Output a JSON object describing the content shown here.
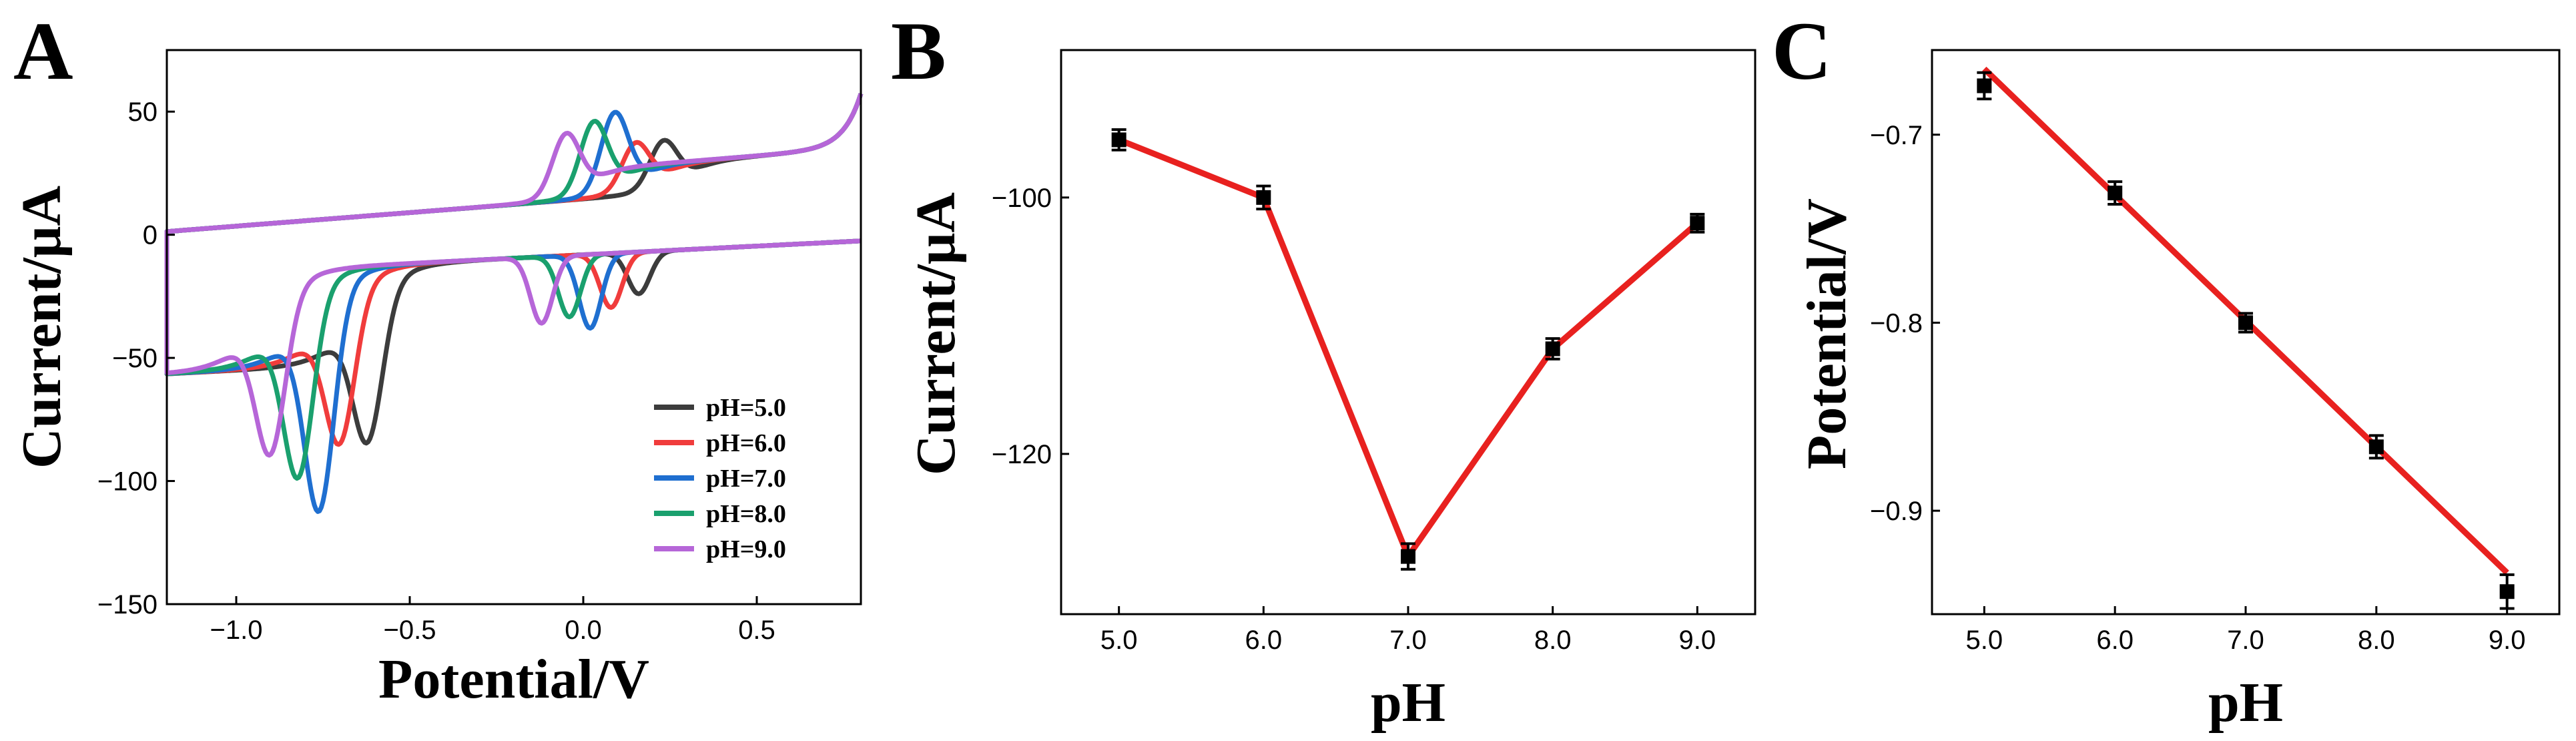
{
  "chart_data": [
    {
      "panel": "A",
      "type": "line",
      "xlabel": "Potential/V",
      "ylabel": "Current/μA",
      "xlim": [
        -1.2,
        0.8
      ],
      "ylim": [
        -150,
        75
      ],
      "xticks": [
        -1.0,
        -0.5,
        0.0,
        0.5
      ],
      "xtick_labels": [
        "−1.0",
        "−0.5",
        "0.0",
        "0.5"
      ],
      "yticks": [
        -150,
        -100,
        -50,
        0,
        50
      ],
      "ytick_labels": [
        "−150",
        "−100",
        "−50",
        "0",
        "50"
      ],
      "legend_position": "bottom-right",
      "series": [
        {
          "name": "pH=5.0",
          "color": "#3c3c3c",
          "shift": 0.08,
          "ox": 40,
          "red": -100,
          "rmin": -30
        },
        {
          "name": "pH=6.0",
          "color": "#f03c3c",
          "shift": 0.0,
          "ox": 40,
          "red": -100,
          "rmin": -35
        },
        {
          "name": "pH=7.0",
          "color": "#1f6fd0",
          "shift": -0.06,
          "ox": 53,
          "red": -127,
          "rmin": -43
        },
        {
          "name": "pH=8.0",
          "color": "#1aa06e",
          "shift": -0.12,
          "ox": 50,
          "red": -113,
          "rmin": -38
        },
        {
          "name": "pH=9.0",
          "color": "#b666d8",
          "shift": -0.2,
          "ox": 46,
          "red": -103,
          "rmin": -40
        }
      ]
    },
    {
      "panel": "B",
      "type": "line",
      "xlabel": "pH",
      "ylabel": "Current/μA",
      "xlim": [
        4.6,
        9.4
      ],
      "ylim": [
        -132.5,
        -88.5
      ],
      "xticks": [
        5,
        6,
        7,
        8,
        9
      ],
      "xtick_labels": [
        "5.0",
        "6.0",
        "7.0",
        "8.0",
        "9.0"
      ],
      "yticks": [
        -120,
        -100
      ],
      "ytick_labels": [
        "−120",
        "−100"
      ],
      "x": [
        5.0,
        6.0,
        7.0,
        8.0,
        9.0
      ],
      "y": [
        -95.5,
        -100.0,
        -128.0,
        -111.8,
        -102.0
      ],
      "err": [
        0.8,
        0.9,
        1.0,
        0.8,
        0.7
      ],
      "line_color": "#e8211f"
    },
    {
      "panel": "C",
      "type": "scatter",
      "xlabel": "pH",
      "ylabel": "Potential/V",
      "xlim": [
        4.6,
        9.4
      ],
      "ylim": [
        -0.955,
        -0.655
      ],
      "xticks": [
        5,
        6,
        7,
        8,
        9
      ],
      "xtick_labels": [
        "5.0",
        "6.0",
        "7.0",
        "8.0",
        "9.0"
      ],
      "yticks": [
        -0.9,
        -0.8,
        -0.7
      ],
      "ytick_labels": [
        "−0.9",
        "−0.8",
        "−0.7"
      ],
      "x": [
        5.0,
        6.0,
        7.0,
        8.0,
        9.0
      ],
      "y": [
        -0.674,
        -0.731,
        -0.8,
        -0.866,
        -0.943
      ],
      "err": [
        0.007,
        0.006,
        0.005,
        0.006,
        0.009
      ],
      "fit_line": {
        "x": [
          5.0,
          9.0
        ],
        "y": [
          -0.665,
          -0.933
        ]
      },
      "line_color": "#e8211f"
    }
  ]
}
